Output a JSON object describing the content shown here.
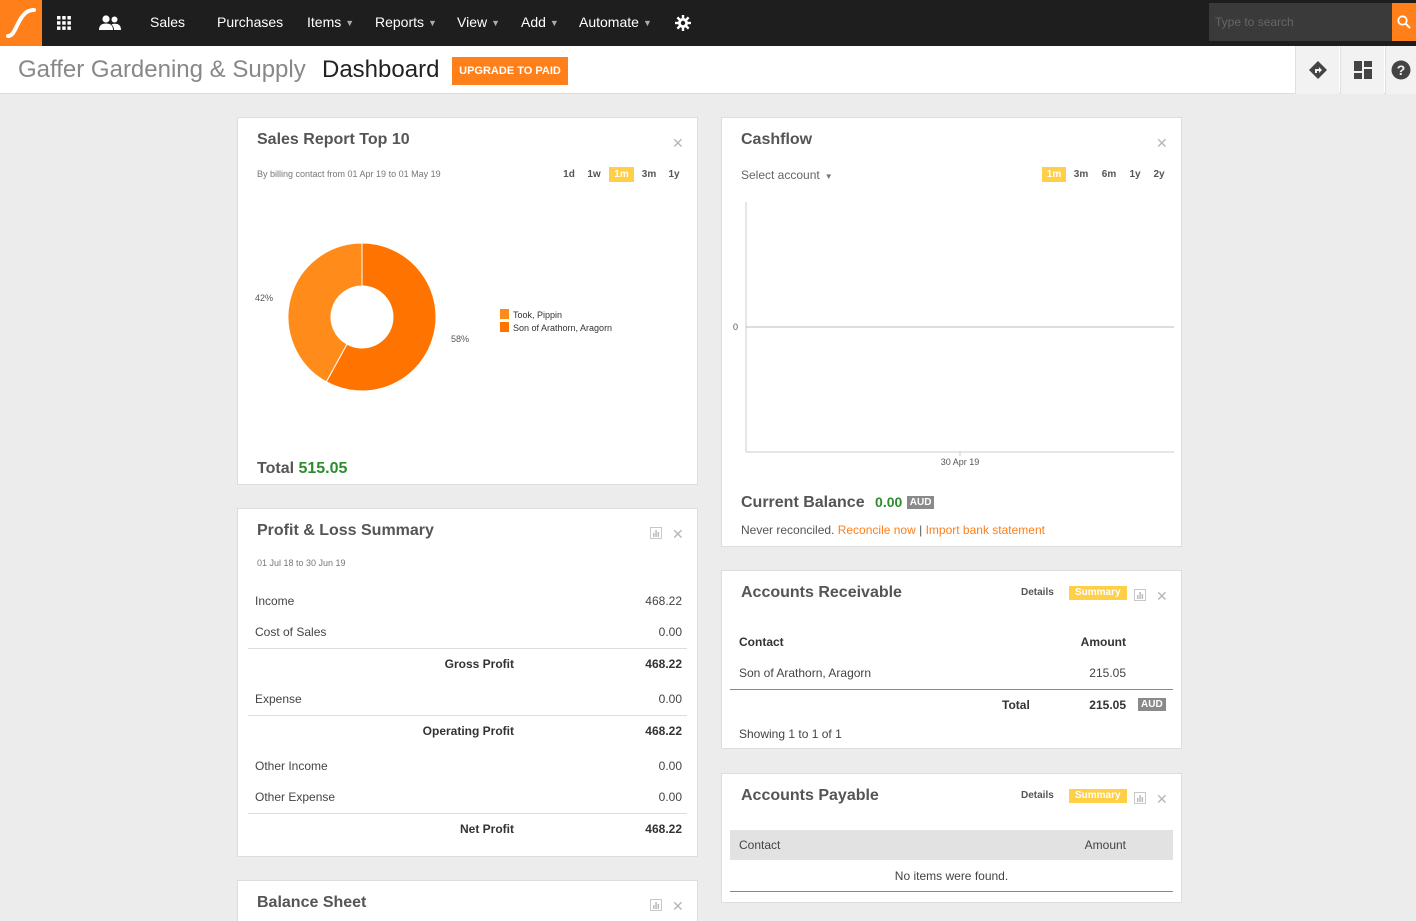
{
  "nav": {
    "items": [
      {
        "label": "Sales",
        "has_caret": false
      },
      {
        "label": "Purchases",
        "has_caret": false
      },
      {
        "label": "Items",
        "has_caret": true
      },
      {
        "label": "Reports",
        "has_caret": true
      },
      {
        "label": "View",
        "has_caret": true
      },
      {
        "label": "Add",
        "has_caret": true
      },
      {
        "label": "Automate",
        "has_caret": true
      }
    ],
    "search_placeholder": "Type to search",
    "accent_color": "#ff7f1a"
  },
  "header": {
    "org_name": "Gaffer Gardening & Supply",
    "page_title": "Dashboard",
    "upgrade_label": "UPGRADE TO PAID"
  },
  "sales_report": {
    "title": "Sales Report Top 10",
    "subtitle": "By billing contact from 01 Apr 19 to 01 May 19",
    "ranges": [
      "1d",
      "1w",
      "1m",
      "3m",
      "1y"
    ],
    "active_range": "1m",
    "total_label": "Total",
    "total_value": "515.05",
    "chart_data": {
      "type": "pie",
      "slices": [
        {
          "name": "Took, Pippin",
          "percent": 42,
          "label": "42%",
          "color": "#ff8c1a"
        },
        {
          "name": "Son of Arathorn, Aragorn",
          "percent": 58,
          "label": "58%",
          "color": "#ff7400"
        }
      ]
    }
  },
  "cashflow": {
    "title": "Cashflow",
    "select_account": "Select account",
    "ranges": [
      "1m",
      "3m",
      "6m",
      "1y",
      "2y"
    ],
    "active_range": "1m",
    "chart_data": {
      "type": "line",
      "y_tick": "0",
      "x_tick": "30 Apr 19",
      "series": []
    },
    "current_balance_label": "Current Balance",
    "current_balance_value": "0.00",
    "currency": "AUD",
    "never_reconciled": "Never reconciled.",
    "reconcile_link": "Reconcile now",
    "separator": "|",
    "import_link": "Import bank statement"
  },
  "pnl": {
    "title": "Profit & Loss Summary",
    "period": "01 Jul 18 to 30 Jun 19",
    "income_label": "Income",
    "income_value": "468.22",
    "cos_label": "Cost of Sales",
    "cos_value": "0.00",
    "gross_label": "Gross Profit",
    "gross_value": "468.22",
    "expense_label": "Expense",
    "expense_value": "0.00",
    "operating_label": "Operating Profit",
    "operating_value": "468.22",
    "other_income_label": "Other Income",
    "other_income_value": "0.00",
    "other_expense_label": "Other Expense",
    "other_expense_value": "0.00",
    "net_label": "Net Profit",
    "net_value": "468.22"
  },
  "receivable": {
    "title": "Accounts Receivable",
    "details_label": "Details",
    "summary_label": "Summary",
    "col_contact": "Contact",
    "col_amount": "Amount",
    "rows": [
      {
        "contact": "Son of Arathorn, Aragorn",
        "amount": "215.05"
      }
    ],
    "total_label": "Total",
    "total_value": "215.05",
    "currency": "AUD",
    "showing": "Showing 1 to 1 of 1"
  },
  "payable": {
    "title": "Accounts Payable",
    "details_label": "Details",
    "summary_label": "Summary",
    "col_contact": "Contact",
    "col_amount": "Amount",
    "empty_text": "No items were found."
  },
  "balance_sheet": {
    "title": "Balance Sheet"
  }
}
